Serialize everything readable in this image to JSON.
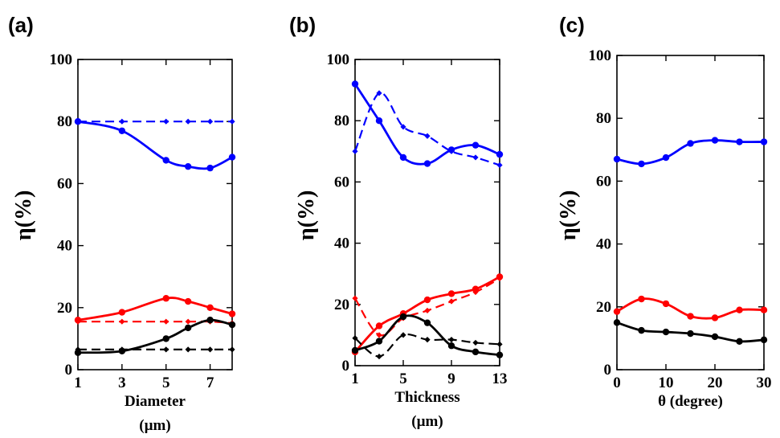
{
  "chart_data": [
    {
      "id": "a",
      "type": "line",
      "panel_label": "(a)",
      "xlabel": [
        "Diameter",
        "(µm)"
      ],
      "ylabel": "η(%)",
      "xlim": [
        1,
        8
      ],
      "ylim": [
        0,
        100
      ],
      "xticks": [
        1,
        3,
        5,
        7
      ],
      "yticks": [
        0,
        20,
        40,
        60,
        80,
        100
      ],
      "series": [
        {
          "color": "#0000ff",
          "dash": false,
          "x": [
            1,
            3,
            5,
            6,
            7,
            8
          ],
          "y": [
            80,
            77,
            67.5,
            65.5,
            65,
            68.5
          ]
        },
        {
          "color": "#0000ff",
          "dash": true,
          "x": [
            1,
            3,
            5,
            6,
            7,
            8
          ],
          "y": [
            80,
            80,
            80,
            80,
            80,
            80
          ]
        },
        {
          "color": "#ff0000",
          "dash": false,
          "x": [
            1,
            3,
            5,
            6,
            7,
            8
          ],
          "y": [
            16,
            18.5,
            23,
            22,
            20,
            18
          ]
        },
        {
          "color": "#ff0000",
          "dash": true,
          "x": [
            1,
            3,
            5,
            6,
            7,
            8
          ],
          "y": [
            15.5,
            15.5,
            15.5,
            15.5,
            15.5,
            15
          ]
        },
        {
          "color": "#000000",
          "dash": false,
          "x": [
            1,
            3,
            5,
            6,
            7,
            8
          ],
          "y": [
            5.5,
            6,
            10,
            13.5,
            16,
            14.5
          ]
        },
        {
          "color": "#000000",
          "dash": true,
          "x": [
            1,
            3,
            5,
            6,
            7,
            8
          ],
          "y": [
            6.5,
            6.5,
            6.5,
            6.5,
            6.5,
            6.5
          ]
        }
      ]
    },
    {
      "id": "b",
      "type": "line",
      "panel_label": "(b)",
      "xlabel": [
        "Thickness",
        "(µm)"
      ],
      "ylabel": "η(%)",
      "xlim": [
        1,
        13
      ],
      "ylim": [
        0,
        100
      ],
      "xticks": [
        1,
        5,
        9,
        13
      ],
      "yticks": [
        0,
        20,
        40,
        60,
        80,
        100
      ],
      "series": [
        {
          "color": "#0000ff",
          "dash": false,
          "x": [
            1,
            3,
            5,
            7,
            9,
            11,
            13
          ],
          "y": [
            92,
            80,
            68,
            66,
            70.5,
            72,
            69
          ]
        },
        {
          "color": "#0000ff",
          "dash": true,
          "x": [
            1,
            3,
            5,
            7,
            9,
            11,
            13
          ],
          "y": [
            70,
            89,
            78,
            75,
            70,
            68,
            65.5
          ]
        },
        {
          "color": "#ff0000",
          "dash": false,
          "x": [
            1,
            3,
            5,
            7,
            9,
            11,
            13
          ],
          "y": [
            4.5,
            13,
            17,
            21.5,
            23.5,
            25,
            29
          ]
        },
        {
          "color": "#ff0000",
          "dash": true,
          "x": [
            1,
            3,
            5,
            7,
            9,
            11,
            13
          ],
          "y": [
            22,
            10,
            15.5,
            18,
            21,
            24,
            28.5
          ]
        },
        {
          "color": "#000000",
          "dash": false,
          "x": [
            1,
            3,
            5,
            7,
            9,
            11,
            13
          ],
          "y": [
            5,
            8,
            16,
            14,
            6.5,
            4.5,
            3.5
          ]
        },
        {
          "color": "#000000",
          "dash": true,
          "x": [
            1,
            3,
            5,
            7,
            9,
            11,
            13
          ],
          "y": [
            9,
            3,
            10,
            8.5,
            8.5,
            7.5,
            7
          ]
        }
      ]
    },
    {
      "id": "c",
      "type": "line",
      "panel_label": "(c)",
      "xlabel": [
        "θ (degree)"
      ],
      "ylabel": "η(%)",
      "xlim": [
        0,
        30
      ],
      "ylim": [
        0,
        100
      ],
      "xticks": [
        0,
        10,
        20,
        30
      ],
      "yticks": [
        0,
        20,
        40,
        60,
        80,
        100
      ],
      "series": [
        {
          "color": "#0000ff",
          "dash": false,
          "x": [
            0,
            5,
            10,
            15,
            20,
            25,
            30
          ],
          "y": [
            67,
            65.5,
            67.5,
            72,
            73,
            72.5,
            72.5
          ]
        },
        {
          "color": "#ff0000",
          "dash": false,
          "x": [
            0,
            5,
            10,
            15,
            20,
            25,
            30
          ],
          "y": [
            18.5,
            22.5,
            21,
            17,
            16.5,
            19,
            19
          ]
        },
        {
          "color": "#000000",
          "dash": false,
          "x": [
            0,
            5,
            10,
            15,
            20,
            25,
            30
          ],
          "y": [
            15,
            12.5,
            12,
            11.5,
            10.5,
            9,
            9.5
          ]
        }
      ]
    }
  ]
}
